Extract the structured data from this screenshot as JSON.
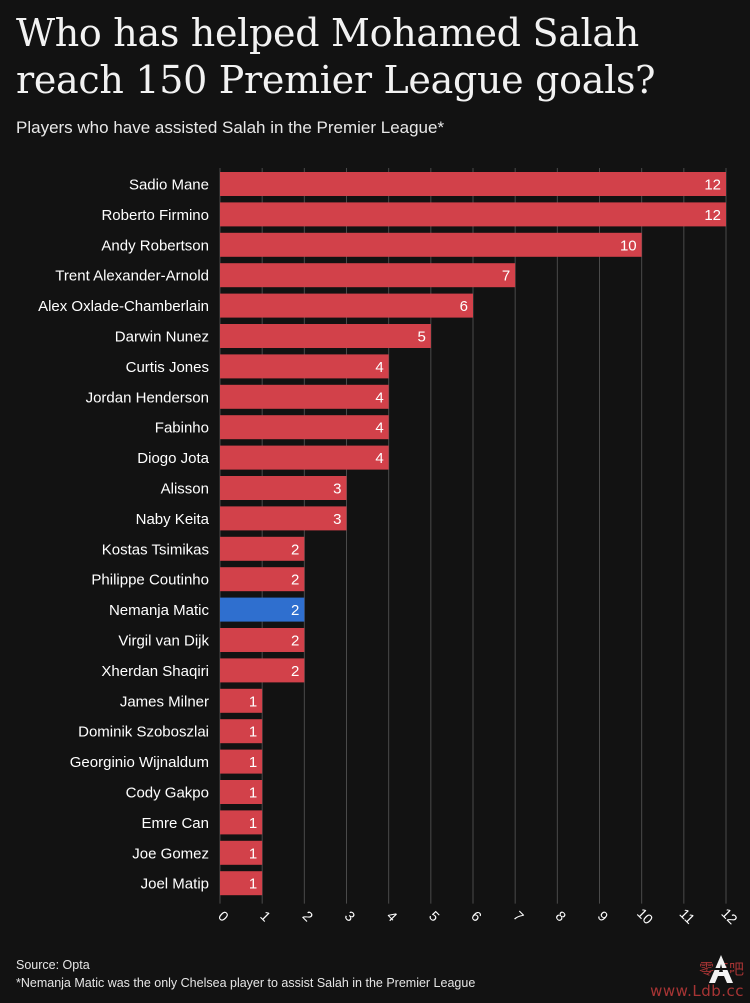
{
  "title": "Who has helped Mohamed Salah reach 150 Premier League goals?",
  "subtitle": "Players who have assisted Salah in the Premier League*",
  "footer": {
    "source": "Source: Opta",
    "note": "*Nemanja Matic was the only Chelsea player to assist Salah in the Premier League"
  },
  "watermark": {
    "chars": "零点吧",
    "url": "www.Ldb.cc"
  },
  "colors": {
    "background": "#121212",
    "bar": "#d2414a",
    "highlight": "#2f6fcf",
    "grid": "#4a4a4a",
    "text": "#ffffff"
  },
  "chart_data": {
    "type": "bar",
    "orientation": "horizontal",
    "categories": [
      "Sadio Mane",
      "Roberto Firmino",
      "Andy Robertson",
      "Trent Alexander-Arnold",
      "Alex Oxlade-Chamberlain",
      "Darwin Nunez",
      "Curtis Jones",
      "Jordan Henderson",
      "Fabinho",
      "Diogo Jota",
      "Alisson",
      "Naby Keita",
      "Kostas Tsimikas",
      "Philippe Coutinho",
      "Nemanja Matic",
      "Virgil van Dijk",
      "Xherdan Shaqiri",
      "James Milner",
      "Dominik Szoboszlai",
      "Georginio Wijnaldum",
      "Cody Gakpo",
      "Emre Can",
      "Joe Gomez",
      "Joel Matip"
    ],
    "values": [
      12,
      12,
      10,
      7,
      6,
      5,
      4,
      4,
      4,
      4,
      3,
      3,
      2,
      2,
      2,
      2,
      2,
      1,
      1,
      1,
      1,
      1,
      1,
      1
    ],
    "highlight": [
      "Nemanja Matic"
    ],
    "xlim": [
      0,
      12
    ],
    "xticks": [
      0,
      1,
      2,
      3,
      4,
      5,
      6,
      7,
      8,
      9,
      10,
      11,
      12
    ],
    "grid": true,
    "data_labels": true
  }
}
